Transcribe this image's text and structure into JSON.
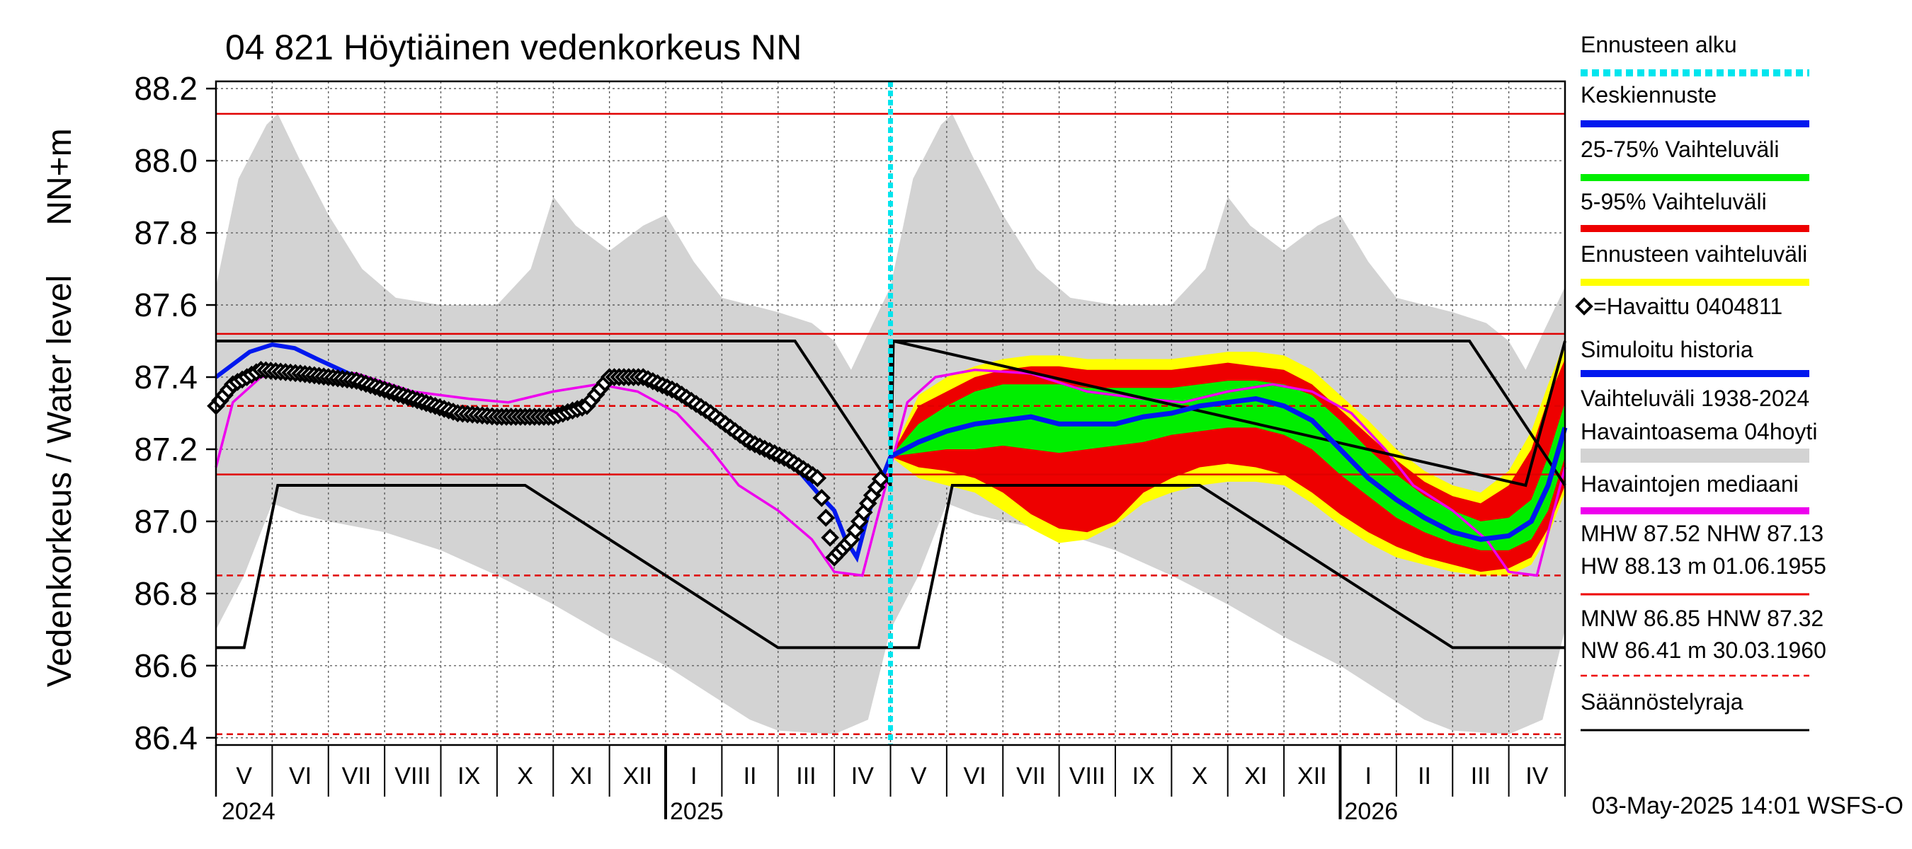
{
  "chart_data": {
    "type": "line",
    "title": "04 821 Höytiäinen vedenkorkeus NN",
    "ylabel_outer": "Vedenkorkeus / Water level",
    "ylabel_inner": "NN+m",
    "ylim": [
      86.38,
      88.22
    ],
    "yticks": [
      "88.2",
      "88.0",
      "87.8",
      "87.6",
      "87.4",
      "87.2",
      "87.0",
      "86.8",
      "86.6",
      "86.4"
    ],
    "ytick_values": [
      88.2,
      88.0,
      87.8,
      87.6,
      87.4,
      87.2,
      87.0,
      86.8,
      86.6,
      86.4
    ],
    "months": [
      "V",
      "VI",
      "VII",
      "VIII",
      "IX",
      "X",
      "XI",
      "XII",
      "I",
      "II",
      "III",
      "IV",
      "V",
      "VI",
      "VII",
      "VIII",
      "IX",
      "X",
      "XI",
      "XII",
      "I",
      "II",
      "III",
      "IV"
    ],
    "years": [
      "2024",
      "2025",
      "2026"
    ],
    "forecast_start_month": 12,
    "reference_lines": {
      "HW": 88.13,
      "MHW": 87.52,
      "NHW": 87.13,
      "HNW": 87.32,
      "MNW": 86.85,
      "NW": 86.41
    },
    "regulation_upper": [
      [
        0,
        87.5
      ],
      [
        10.3,
        87.5
      ],
      [
        12.0,
        87.1
      ],
      [
        12.0,
        87.5
      ],
      [
        22.3,
        87.5
      ],
      [
        24.0,
        87.1
      ]
    ],
    "regulation_upper_rise": [
      [
        12.0,
        87.1
      ],
      [
        12.05,
        87.5
      ],
      [
        23.3,
        87.1
      ],
      [
        24.0,
        87.5
      ]
    ],
    "regulation_lower": [
      [
        0,
        86.65
      ],
      [
        0.5,
        86.65
      ],
      [
        1.1,
        87.1
      ],
      [
        5.5,
        87.1
      ],
      [
        10.0,
        86.65
      ],
      [
        12.5,
        86.65
      ],
      [
        13.1,
        87.1
      ],
      [
        17.5,
        87.1
      ],
      [
        22.0,
        86.65
      ],
      [
        24.0,
        86.65
      ]
    ],
    "historical_max": [
      [
        0,
        87.65
      ],
      [
        0.4,
        87.95
      ],
      [
        0.9,
        88.1
      ],
      [
        1.1,
        88.13
      ],
      [
        1.5,
        88.0
      ],
      [
        2.0,
        87.85
      ],
      [
        2.6,
        87.7
      ],
      [
        3.2,
        87.62
      ],
      [
        4.0,
        87.6
      ],
      [
        5.0,
        87.6
      ],
      [
        5.6,
        87.7
      ],
      [
        6.0,
        87.9
      ],
      [
        6.4,
        87.82
      ],
      [
        7.0,
        87.75
      ],
      [
        7.6,
        87.82
      ],
      [
        8.0,
        87.85
      ],
      [
        8.5,
        87.72
      ],
      [
        9.0,
        87.62
      ],
      [
        10.0,
        87.58
      ],
      [
        10.6,
        87.55
      ],
      [
        11.0,
        87.5
      ],
      [
        11.3,
        87.42
      ],
      [
        11.6,
        87.52
      ],
      [
        12.0,
        87.65
      ],
      [
        12.4,
        87.95
      ],
      [
        12.9,
        88.1
      ],
      [
        13.1,
        88.13
      ],
      [
        13.5,
        88.0
      ],
      [
        14.0,
        87.85
      ],
      [
        14.6,
        87.7
      ],
      [
        15.2,
        87.62
      ],
      [
        16.0,
        87.6
      ],
      [
        17.0,
        87.6
      ],
      [
        17.6,
        87.7
      ],
      [
        18.0,
        87.9
      ],
      [
        18.4,
        87.82
      ],
      [
        19.0,
        87.75
      ],
      [
        19.6,
        87.82
      ],
      [
        20.0,
        87.85
      ],
      [
        20.5,
        87.72
      ],
      [
        21.0,
        87.62
      ],
      [
        22.0,
        87.58
      ],
      [
        22.6,
        87.55
      ],
      [
        23.0,
        87.5
      ],
      [
        23.3,
        87.42
      ],
      [
        23.6,
        87.52
      ],
      [
        24.0,
        87.65
      ]
    ],
    "historical_min": [
      [
        0,
        86.7
      ],
      [
        0.5,
        86.85
      ],
      [
        1.0,
        87.05
      ],
      [
        1.5,
        87.02
      ],
      [
        2.0,
        87.0
      ],
      [
        3.0,
        86.97
      ],
      [
        4.0,
        86.92
      ],
      [
        5.0,
        86.85
      ],
      [
        6.0,
        86.77
      ],
      [
        7.0,
        86.68
      ],
      [
        8.0,
        86.6
      ],
      [
        8.8,
        86.52
      ],
      [
        9.5,
        86.45
      ],
      [
        10.0,
        86.42
      ],
      [
        11.0,
        86.41
      ],
      [
        11.6,
        86.45
      ],
      [
        12.0,
        86.7
      ],
      [
        12.5,
        86.85
      ],
      [
        13.0,
        87.05
      ],
      [
        13.5,
        87.02
      ],
      [
        14.0,
        87.0
      ],
      [
        15.0,
        86.97
      ],
      [
        16.0,
        86.92
      ],
      [
        17.0,
        86.85
      ],
      [
        18.0,
        86.77
      ],
      [
        19.0,
        86.68
      ],
      [
        20.0,
        86.6
      ],
      [
        20.8,
        86.52
      ],
      [
        21.5,
        86.45
      ],
      [
        22.0,
        86.42
      ],
      [
        23.0,
        86.41
      ],
      [
        23.6,
        86.45
      ],
      [
        24.0,
        86.7
      ]
    ],
    "median": [
      [
        0,
        87.15
      ],
      [
        0.3,
        87.33
      ],
      [
        0.8,
        87.4
      ],
      [
        1.5,
        87.42
      ],
      [
        2.5,
        87.41
      ],
      [
        3.5,
        87.36
      ],
      [
        4.5,
        87.34
      ],
      [
        5.2,
        87.33
      ],
      [
        6.0,
        87.36
      ],
      [
        6.8,
        87.38
      ],
      [
        7.5,
        87.36
      ],
      [
        8.2,
        87.3
      ],
      [
        8.8,
        87.2
      ],
      [
        9.3,
        87.1
      ],
      [
        10.0,
        87.03
      ],
      [
        10.6,
        86.95
      ],
      [
        11.0,
        86.86
      ],
      [
        11.5,
        86.85
      ],
      [
        12.0,
        87.15
      ],
      [
        12.3,
        87.33
      ],
      [
        12.8,
        87.4
      ],
      [
        13.5,
        87.42
      ],
      [
        14.5,
        87.41
      ],
      [
        15.5,
        87.36
      ],
      [
        16.5,
        87.34
      ],
      [
        17.2,
        87.33
      ],
      [
        18.0,
        87.36
      ],
      [
        18.8,
        87.38
      ],
      [
        19.5,
        87.36
      ],
      [
        20.2,
        87.3
      ],
      [
        20.8,
        87.2
      ],
      [
        21.3,
        87.1
      ],
      [
        22.0,
        87.03
      ],
      [
        22.6,
        86.95
      ],
      [
        23.0,
        86.86
      ],
      [
        23.5,
        86.85
      ],
      [
        24.0,
        87.15
      ]
    ],
    "observed": [
      [
        0,
        87.32
      ],
      [
        0.3,
        87.38
      ],
      [
        0.8,
        87.42
      ],
      [
        1.5,
        87.41
      ],
      [
        2.5,
        87.39
      ],
      [
        3.5,
        87.34
      ],
      [
        4.3,
        87.3
      ],
      [
        5.0,
        87.29
      ],
      [
        6.0,
        87.29
      ],
      [
        6.6,
        87.32
      ],
      [
        7.0,
        87.4
      ],
      [
        7.6,
        87.4
      ],
      [
        8.2,
        87.36
      ],
      [
        8.8,
        87.3
      ],
      [
        9.5,
        87.22
      ],
      [
        10.2,
        87.17
      ],
      [
        10.7,
        87.12
      ],
      [
        11.0,
        86.9
      ],
      [
        11.3,
        86.95
      ],
      [
        11.6,
        87.05
      ],
      [
        11.9,
        87.14
      ]
    ],
    "simulated_history": [
      [
        0,
        87.4
      ],
      [
        0.6,
        87.47
      ],
      [
        1.0,
        87.49
      ],
      [
        1.4,
        87.48
      ],
      [
        1.8,
        87.45
      ],
      [
        2.5,
        87.4
      ],
      [
        3.5,
        87.34
      ],
      [
        4.3,
        87.3
      ],
      [
        5.0,
        87.29
      ],
      [
        6.0,
        87.29
      ],
      [
        6.6,
        87.32
      ],
      [
        7.0,
        87.4
      ],
      [
        7.6,
        87.4
      ],
      [
        8.2,
        87.36
      ],
      [
        8.8,
        87.3
      ],
      [
        9.5,
        87.22
      ],
      [
        10.2,
        87.17
      ],
      [
        10.7,
        87.08
      ],
      [
        11.0,
        87.03
      ],
      [
        11.2,
        86.95
      ],
      [
        11.4,
        86.9
      ],
      [
        11.6,
        87.02
      ],
      [
        11.9,
        87.14
      ],
      [
        12.0,
        87.18
      ]
    ],
    "forecast_median": [
      [
        12.0,
        87.18
      ],
      [
        12.5,
        87.22
      ],
      [
        13.0,
        87.25
      ],
      [
        13.5,
        87.27
      ],
      [
        14.0,
        87.28
      ],
      [
        14.5,
        87.29
      ],
      [
        15.0,
        87.27
      ],
      [
        15.5,
        87.27
      ],
      [
        16.0,
        87.27
      ],
      [
        16.5,
        87.29
      ],
      [
        17.0,
        87.3
      ],
      [
        17.5,
        87.32
      ],
      [
        18.0,
        87.33
      ],
      [
        18.5,
        87.34
      ],
      [
        19.0,
        87.32
      ],
      [
        19.5,
        87.28
      ],
      [
        20.0,
        87.2
      ],
      [
        20.5,
        87.12
      ],
      [
        21.0,
        87.06
      ],
      [
        21.5,
        87.01
      ],
      [
        22.0,
        86.97
      ],
      [
        22.5,
        86.95
      ],
      [
        23.0,
        86.96
      ],
      [
        23.4,
        87.0
      ],
      [
        23.7,
        87.1
      ],
      [
        24.0,
        87.26
      ]
    ],
    "band_25_75": [
      [
        12.0,
        87.18,
        87.18
      ],
      [
        12.5,
        87.19,
        87.27
      ],
      [
        13.0,
        87.2,
        87.32
      ],
      [
        13.5,
        87.2,
        87.36
      ],
      [
        14.0,
        87.21,
        87.38
      ],
      [
        14.5,
        87.2,
        87.38
      ],
      [
        15.0,
        87.19,
        87.38
      ],
      [
        15.5,
        87.2,
        87.37
      ],
      [
        16.0,
        87.21,
        87.37
      ],
      [
        16.5,
        87.22,
        87.37
      ],
      [
        17.0,
        87.24,
        87.37
      ],
      [
        17.5,
        87.25,
        87.38
      ],
      [
        18.0,
        87.26,
        87.39
      ],
      [
        18.5,
        87.26,
        87.39
      ],
      [
        19.0,
        87.24,
        87.38
      ],
      [
        19.5,
        87.2,
        87.35
      ],
      [
        20.0,
        87.13,
        87.28
      ],
      [
        20.5,
        87.07,
        87.2
      ],
      [
        21.0,
        87.01,
        87.13
      ],
      [
        21.5,
        86.97,
        87.07
      ],
      [
        22.0,
        86.94,
        87.03
      ],
      [
        22.5,
        86.92,
        87.0
      ],
      [
        23.0,
        86.92,
        87.01
      ],
      [
        23.4,
        86.95,
        87.06
      ],
      [
        23.7,
        87.03,
        87.18
      ],
      [
        24.0,
        87.18,
        87.33
      ]
    ],
    "band_5_95": [
      [
        12.0,
        87.18,
        87.18
      ],
      [
        12.5,
        87.15,
        87.32
      ],
      [
        13.0,
        87.14,
        87.36
      ],
      [
        13.5,
        87.12,
        87.4
      ],
      [
        14.0,
        87.08,
        87.42
      ],
      [
        14.5,
        87.02,
        87.43
      ],
      [
        15.0,
        86.98,
        87.43
      ],
      [
        15.5,
        86.97,
        87.42
      ],
      [
        16.0,
        87.0,
        87.42
      ],
      [
        16.5,
        87.08,
        87.42
      ],
      [
        17.0,
        87.12,
        87.42
      ],
      [
        17.5,
        87.15,
        87.43
      ],
      [
        18.0,
        87.16,
        87.44
      ],
      [
        18.5,
        87.15,
        87.43
      ],
      [
        19.0,
        87.13,
        87.42
      ],
      [
        19.5,
        87.08,
        87.38
      ],
      [
        20.0,
        87.02,
        87.31
      ],
      [
        20.5,
        86.97,
        87.24
      ],
      [
        21.0,
        86.93,
        87.17
      ],
      [
        21.5,
        86.9,
        87.11
      ],
      [
        22.0,
        86.88,
        87.07
      ],
      [
        22.5,
        86.86,
        87.05
      ],
      [
        23.0,
        86.87,
        87.1
      ],
      [
        23.4,
        86.9,
        87.2
      ],
      [
        23.7,
        86.98,
        87.34
      ],
      [
        24.0,
        87.1,
        87.45
      ]
    ],
    "band_forecast": [
      [
        12.0,
        87.18,
        87.18
      ],
      [
        12.5,
        87.12,
        87.35
      ],
      [
        13.0,
        87.1,
        87.4
      ],
      [
        13.5,
        87.08,
        87.43
      ],
      [
        14.0,
        87.03,
        87.45
      ],
      [
        14.5,
        86.98,
        87.46
      ],
      [
        15.0,
        86.94,
        87.46
      ],
      [
        15.5,
        86.95,
        87.45
      ],
      [
        16.0,
        86.99,
        87.45
      ],
      [
        16.5,
        87.05,
        87.45
      ],
      [
        17.0,
        87.08,
        87.45
      ],
      [
        17.5,
        87.1,
        87.46
      ],
      [
        18.0,
        87.11,
        87.47
      ],
      [
        18.5,
        87.11,
        87.47
      ],
      [
        19.0,
        87.1,
        87.46
      ],
      [
        19.5,
        87.05,
        87.42
      ],
      [
        20.0,
        86.99,
        87.35
      ],
      [
        20.5,
        86.94,
        87.28
      ],
      [
        21.0,
        86.9,
        87.2
      ],
      [
        21.5,
        86.88,
        87.14
      ],
      [
        22.0,
        86.86,
        87.1
      ],
      [
        22.5,
        86.85,
        87.08
      ],
      [
        23.0,
        86.85,
        87.14
      ],
      [
        23.4,
        86.88,
        87.25
      ],
      [
        23.7,
        86.96,
        87.38
      ],
      [
        24.0,
        87.08,
        87.5
      ]
    ],
    "legend": [
      {
        "label": "Ennusteen alku",
        "color": "#00e5ee",
        "style": "dotted"
      },
      {
        "label": "Keskiennuste",
        "color": "#0018ee",
        "style": "line"
      },
      {
        "label": "25-75% Vaihteluväli",
        "color": "#00ee00",
        "style": "line"
      },
      {
        "label": "5-95% Vaihteluväli",
        "color": "#ee0000",
        "style": "line"
      },
      {
        "label": "Ennusteen vaihteluväli",
        "color": "#ffff00",
        "style": "line"
      },
      {
        "label": "=Havaittu 0404811",
        "color": "#000000",
        "style": "diamond"
      },
      {
        "label": "Simuloitu historia",
        "color": "#0018ee",
        "style": "line"
      },
      {
        "label": "Vaihteluväli 1938-2024",
        "color": "#d3d3d3",
        "style": "none"
      },
      {
        "label": " Havaintoasema 04hoyti",
        "color": "#d3d3d3",
        "style": "band"
      },
      {
        "label": "Havaintojen mediaani",
        "color": "#ee00ee",
        "style": "line"
      },
      {
        "label": "MHW  87.52 NHW  87.13",
        "color": "#000000",
        "style": "none"
      },
      {
        "label": "HW  88.13 m 01.06.1955",
        "color": "#ee0000",
        "style": "line"
      },
      {
        "label": "MNW  86.85 HNW  87.32",
        "color": "#000000",
        "style": "none"
      },
      {
        "label": "NW  86.41 m 30.03.1960",
        "color": "#ee0000",
        "style": "dashed"
      },
      {
        "label": "Säännöstelyraja",
        "color": "#000000",
        "style": "line"
      }
    ],
    "timestamp": "03-May-2025 14:01 WSFS-O"
  }
}
